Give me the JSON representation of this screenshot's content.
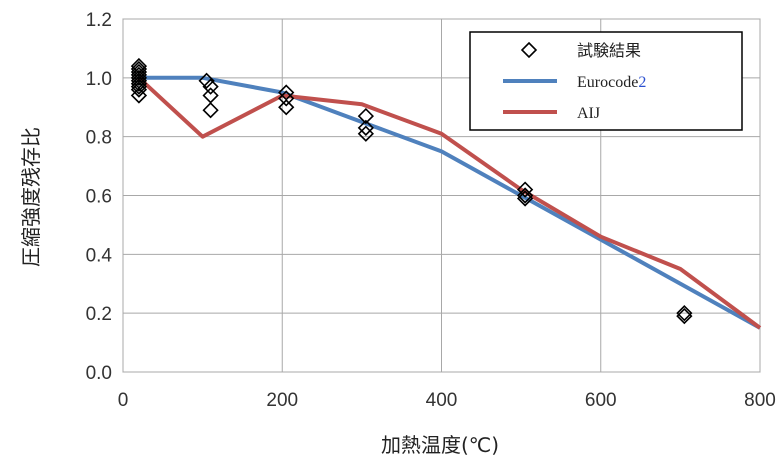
{
  "chart_data": {
    "type": "line",
    "title": "",
    "xlabel": "加熱温度(℃)",
    "ylabel": "圧縮強度残存比",
    "xlim": [
      0,
      800
    ],
    "ylim": [
      0,
      1.2
    ],
    "x_ticks": [
      "0",
      "200",
      "400",
      "600",
      "800"
    ],
    "y_ticks": [
      "0.0",
      "0.2",
      "0.4",
      "0.6",
      "0.8",
      "1.0",
      "1.2"
    ],
    "grid": true,
    "legend_position": "top-right",
    "series": [
      {
        "name": "試験結果",
        "kind": "scatter",
        "marker": "diamond",
        "color": "#000000",
        "points": [
          [
            20,
            1.04
          ],
          [
            20,
            1.03
          ],
          [
            20,
            1.02
          ],
          [
            20,
            1.01
          ],
          [
            20,
            1.0
          ],
          [
            20,
            0.99
          ],
          [
            20,
            0.98
          ],
          [
            20,
            0.97
          ],
          [
            20,
            0.96
          ],
          [
            20,
            0.94
          ],
          [
            105,
            0.99
          ],
          [
            110,
            0.97
          ],
          [
            110,
            0.94
          ],
          [
            110,
            0.89
          ],
          [
            205,
            0.95
          ],
          [
            205,
            0.93
          ],
          [
            205,
            0.9
          ],
          [
            305,
            0.87
          ],
          [
            305,
            0.83
          ],
          [
            305,
            0.81
          ],
          [
            505,
            0.62
          ],
          [
            505,
            0.6
          ],
          [
            505,
            0.59
          ],
          [
            705,
            0.2
          ],
          [
            705,
            0.19
          ]
        ]
      },
      {
        "name": "Eurocode2",
        "name_parts": [
          "Eurocode",
          "2"
        ],
        "kind": "line",
        "color": "#4f81bd",
        "x": [
          20,
          100,
          200,
          300,
          400,
          500,
          600,
          700,
          800
        ],
        "y": [
          1.0,
          1.0,
          0.95,
          0.85,
          0.75,
          0.6,
          0.45,
          0.3,
          0.15
        ]
      },
      {
        "name": "AIJ",
        "kind": "line",
        "color": "#c0504d",
        "x": [
          20,
          100,
          200,
          300,
          400,
          500,
          600,
          700,
          800
        ],
        "y": [
          1.0,
          0.8,
          0.94,
          0.91,
          0.81,
          0.62,
          0.46,
          0.35,
          0.15
        ]
      }
    ]
  }
}
